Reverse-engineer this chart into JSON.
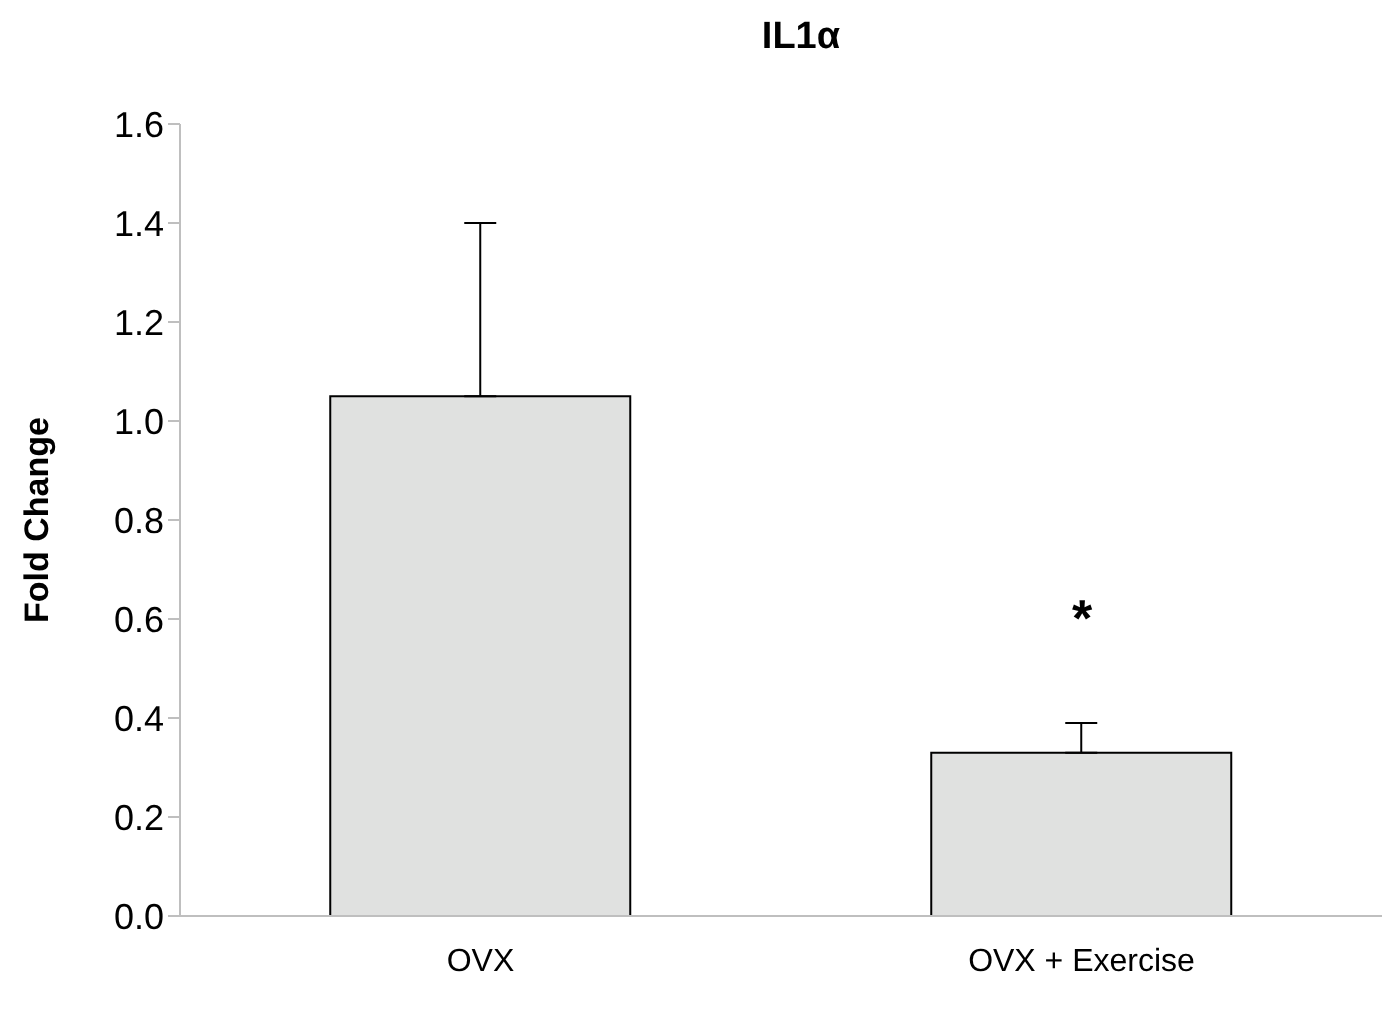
{
  "chart_data": {
    "type": "bar",
    "title": "IL1α",
    "ylabel": "Fold Change",
    "categories": [
      "OVX",
      "OVX + Exercise"
    ],
    "values": [
      1.05,
      0.33
    ],
    "errors": [
      [
        1.05,
        1.4
      ],
      [
        0.33,
        0.39
      ]
    ],
    "color": "#e0e1e0",
    "ylim": [
      0,
      1.6
    ],
    "yticks": [
      {
        "value": 0,
        "label": "0.0"
      },
      {
        "value": 0.2,
        "label": "0.2"
      },
      {
        "value": 0.4,
        "label": "0.4"
      },
      {
        "value": 0.6,
        "label": "0.6"
      },
      {
        "value": 0.8,
        "label": "0.8"
      },
      {
        "value": 1,
        "label": "1.0"
      },
      {
        "value": 1.2,
        "label": "1.2"
      },
      {
        "value": 1.4,
        "label": "1.4"
      },
      {
        "value": 1.6,
        "label": "1.6"
      }
    ],
    "annotations": [
      "*"
    ],
    "grid": false,
    "legend": false
  }
}
